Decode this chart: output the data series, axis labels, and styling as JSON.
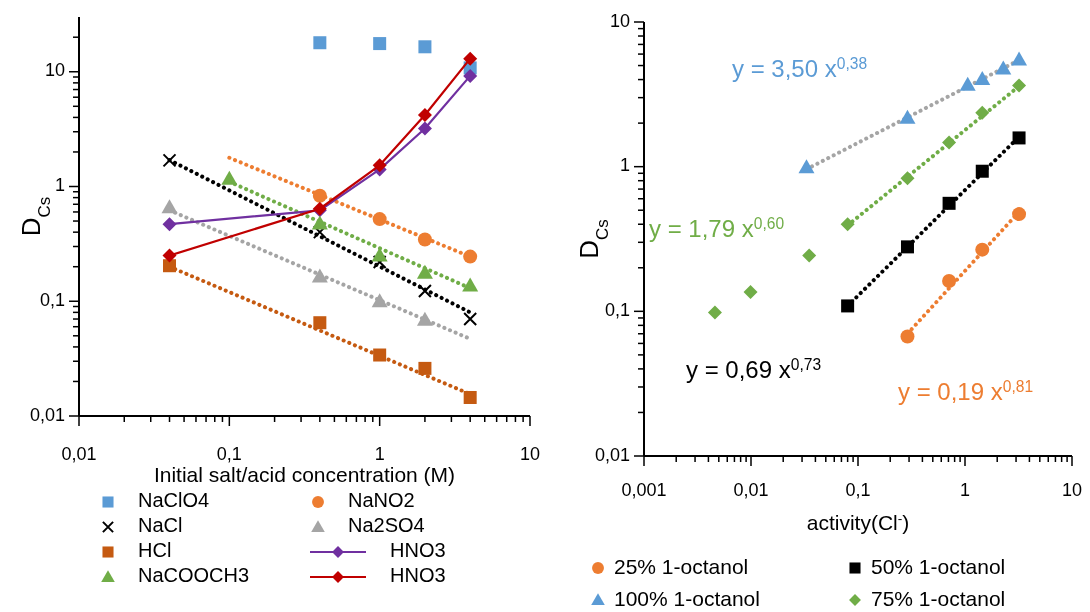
{
  "chart_data": [
    {
      "type": "scatter",
      "xlabel": "Initial salt/acid concentration (M)",
      "ylabel": "D$_{Cs}$",
      "log": "xy",
      "grid": false,
      "legend": "bottom",
      "xlim": [
        0.01,
        10
      ],
      "ylim": [
        0.01,
        30
      ],
      "xticks": [
        {
          "value": 0.01,
          "label": "0,01"
        },
        {
          "value": 0.1,
          "label": "0,1"
        },
        {
          "value": 1,
          "label": "1"
        },
        {
          "value": 10,
          "label": "10"
        },
        {
          "value": 0.02,
          "label": null
        },
        {
          "value": 0.03,
          "label": null
        },
        {
          "value": 0.04,
          "label": null
        },
        {
          "value": 0.05,
          "label": null
        },
        {
          "value": 0.06,
          "label": null
        },
        {
          "value": 0.07,
          "label": null
        },
        {
          "value": 0.08,
          "label": null
        },
        {
          "value": 0.09,
          "label": null
        },
        {
          "value": 0.2,
          "label": null
        },
        {
          "value": 0.3,
          "label": null
        },
        {
          "value": 0.4,
          "label": null
        },
        {
          "value": 0.5,
          "label": null
        },
        {
          "value": 0.6,
          "label": null
        },
        {
          "value": 0.7,
          "label": null
        },
        {
          "value": 0.8,
          "label": null
        },
        {
          "value": 0.9,
          "label": null
        },
        {
          "value": 2,
          "label": null
        },
        {
          "value": 3,
          "label": null
        },
        {
          "value": 4,
          "label": null
        },
        {
          "value": 5,
          "label": null
        },
        {
          "value": 6,
          "label": null
        },
        {
          "value": 7,
          "label": null
        },
        {
          "value": 8,
          "label": null
        },
        {
          "value": 9,
          "label": null
        }
      ],
      "yticks": [
        {
          "value": 0.01,
          "label": "0,01"
        },
        {
          "value": 0.1,
          "label": "0,1"
        },
        {
          "value": 1,
          "label": "1"
        },
        {
          "value": 10,
          "label": "10"
        },
        {
          "value": 0.02,
          "label": null
        },
        {
          "value": 0.03,
          "label": null
        },
        {
          "value": 0.04,
          "label": null
        },
        {
          "value": 0.05,
          "label": null
        },
        {
          "value": 0.06,
          "label": null
        },
        {
          "value": 0.07,
          "label": null
        },
        {
          "value": 0.08,
          "label": null
        },
        {
          "value": 0.09,
          "label": null
        },
        {
          "value": 0.2,
          "label": null
        },
        {
          "value": 0.3,
          "label": null
        },
        {
          "value": 0.4,
          "label": null
        },
        {
          "value": 0.5,
          "label": null
        },
        {
          "value": 0.6,
          "label": null
        },
        {
          "value": 0.7,
          "label": null
        },
        {
          "value": 0.8,
          "label": null
        },
        {
          "value": 0.9,
          "label": null
        },
        {
          "value": 2,
          "label": null
        },
        {
          "value": 3,
          "label": null
        },
        {
          "value": 4,
          "label": null
        },
        {
          "value": 5,
          "label": null
        },
        {
          "value": 6,
          "label": null
        },
        {
          "value": 7,
          "label": null
        },
        {
          "value": 8,
          "label": null
        },
        {
          "value": 9,
          "label": null
        },
        {
          "value": 20,
          "label": null
        }
      ],
      "series": [
        {
          "type": "line",
          "color": "#ed7d31",
          "marker": "none",
          "line_style": "dotted",
          "x": [
            0.1,
            4
          ],
          "values": [
            1.78,
            0.245
          ]
        },
        {
          "type": "line",
          "color": "#000000",
          "marker": "none",
          "line_style": "dotted",
          "x": [
            0.04,
            4
          ],
          "values": [
            1.7,
            0.08
          ]
        },
        {
          "type": "line",
          "color": "#a5a5a5",
          "marker": "none",
          "line_style": "dotted",
          "x": [
            0.04,
            4
          ],
          "values": [
            0.62,
            0.047
          ]
        },
        {
          "type": "line",
          "color": "#c55a11",
          "marker": "none",
          "line_style": "dotted",
          "x": [
            0.04,
            4
          ],
          "values": [
            0.2,
            0.0155
          ]
        },
        {
          "type": "line",
          "color": "#70ad47",
          "marker": "none",
          "line_style": "dotted",
          "x": [
            0.1,
            4
          ],
          "values": [
            1.1,
            0.13
          ]
        },
        {
          "name": "NaClO4",
          "type": "scatter",
          "color": "#5b9bd5",
          "marker": "square",
          "x": [
            0.4,
            1,
            2,
            4
          ],
          "values": [
            17.9,
            17.6,
            16.5,
            10.8
          ]
        },
        {
          "name": "NaNO2",
          "type": "scatter",
          "color": "#ed7d31",
          "marker": "circle",
          "x": [
            0.4,
            1,
            2,
            4
          ],
          "values": [
            0.83,
            0.52,
            0.345,
            0.245
          ]
        },
        {
          "name": "NaCl",
          "type": "scatter",
          "color": "#000000",
          "marker": "cross",
          "x": [
            0.04,
            0.4,
            1,
            2,
            4
          ],
          "values": [
            1.69,
            0.4,
            0.22,
            0.123,
            0.07
          ]
        },
        {
          "name": "Na2SO4",
          "type": "scatter",
          "color": "#a5a5a5",
          "marker": "triangle",
          "x": [
            0.04,
            0.4,
            1,
            2
          ],
          "values": [
            0.66,
            0.164,
            0.1,
            0.069
          ]
        },
        {
          "name": "HCl",
          "type": "scatter",
          "color": "#c55a11",
          "marker": "square",
          "x": [
            0.04,
            0.4,
            1,
            2,
            4
          ],
          "values": [
            0.204,
            0.065,
            0.034,
            0.026,
            0.0145
          ]
        },
        {
          "name": "HNO3",
          "type": "line",
          "color": "#7030a0",
          "marker": "diamond",
          "line_style": "solid",
          "x": [
            0.04,
            0.4,
            1,
            2,
            4
          ],
          "values": [
            0.47,
            0.62,
            1.41,
            3.2,
            9.2
          ]
        },
        {
          "name": "NaCOOCH3",
          "type": "scatter",
          "color": "#70ad47",
          "marker": "triangle",
          "x": [
            0.1,
            0.4,
            1,
            2,
            4
          ],
          "values": [
            1.17,
            0.475,
            0.25,
            0.177,
            0.137
          ]
        },
        {
          "name": "HNO3",
          "type": "line",
          "color": "#c00000",
          "marker": "diamond",
          "line_style": "solid",
          "x": [
            0.04,
            0.4,
            1,
            2,
            4
          ],
          "values": [
            0.25,
            0.64,
            1.53,
            4.2,
            13
          ]
        }
      ]
    },
    {
      "type": "scatter",
      "xlabel": "activity(Cl$^{-}$)",
      "ylabel": "D$_{Cs}$",
      "log": "xy",
      "grid": false,
      "legend": "bottom",
      "xlim": [
        0.001,
        10
      ],
      "ylim": [
        0.01,
        10
      ],
      "xticks": [
        {
          "value": 0.001,
          "label": "0,001"
        },
        {
          "value": 0.01,
          "label": "0,01"
        },
        {
          "value": 0.1,
          "label": "0,1"
        },
        {
          "value": 1,
          "label": "1"
        },
        {
          "value": 10,
          "label": "10"
        },
        {
          "value": 0.002,
          "label": null
        },
        {
          "value": 0.003,
          "label": null
        },
        {
          "value": 0.004,
          "label": null
        },
        {
          "value": 0.005,
          "label": null
        },
        {
          "value": 0.006,
          "label": null
        },
        {
          "value": 0.007,
          "label": null
        },
        {
          "value": 0.008,
          "label": null
        },
        {
          "value": 0.009,
          "label": null
        },
        {
          "value": 0.02,
          "label": null
        },
        {
          "value": 0.03,
          "label": null
        },
        {
          "value": 0.04,
          "label": null
        },
        {
          "value": 0.05,
          "label": null
        },
        {
          "value": 0.06,
          "label": null
        },
        {
          "value": 0.07,
          "label": null
        },
        {
          "value": 0.08,
          "label": null
        },
        {
          "value": 0.09,
          "label": null
        },
        {
          "value": 0.2,
          "label": null
        },
        {
          "value": 0.3,
          "label": null
        },
        {
          "value": 0.4,
          "label": null
        },
        {
          "value": 0.5,
          "label": null
        },
        {
          "value": 0.6,
          "label": null
        },
        {
          "value": 0.7,
          "label": null
        },
        {
          "value": 0.8,
          "label": null
        },
        {
          "value": 0.9,
          "label": null
        },
        {
          "value": 2,
          "label": null
        },
        {
          "value": 3,
          "label": null
        },
        {
          "value": 4,
          "label": null
        },
        {
          "value": 5,
          "label": null
        },
        {
          "value": 6,
          "label": null
        },
        {
          "value": 7,
          "label": null
        },
        {
          "value": 8,
          "label": null
        },
        {
          "value": 9,
          "label": null
        }
      ],
      "yticks": [
        {
          "value": 0.01,
          "label": "0,01"
        },
        {
          "value": 0.1,
          "label": "0,1"
        },
        {
          "value": 1,
          "label": "1"
        },
        {
          "value": 10,
          "label": "10"
        },
        {
          "value": 0.02,
          "label": null
        },
        {
          "value": 0.03,
          "label": null
        },
        {
          "value": 0.04,
          "label": null
        },
        {
          "value": 0.05,
          "label": null
        },
        {
          "value": 0.06,
          "label": null
        },
        {
          "value": 0.07,
          "label": null
        },
        {
          "value": 0.08,
          "label": null
        },
        {
          "value": 0.09,
          "label": null
        },
        {
          "value": 0.2,
          "label": null
        },
        {
          "value": 0.3,
          "label": null
        },
        {
          "value": 0.4,
          "label": null
        },
        {
          "value": 0.5,
          "label": null
        },
        {
          "value": 0.6,
          "label": null
        },
        {
          "value": 0.7,
          "label": null
        },
        {
          "value": 0.8,
          "label": null
        },
        {
          "value": 0.9,
          "label": null
        },
        {
          "value": 2,
          "label": null
        },
        {
          "value": 3,
          "label": null
        },
        {
          "value": 4,
          "label": null
        },
        {
          "value": 5,
          "label": null
        },
        {
          "value": 6,
          "label": null
        },
        {
          "value": 7,
          "label": null
        },
        {
          "value": 8,
          "label": null
        },
        {
          "value": 9,
          "label": null
        }
      ],
      "annotations": [
        "y = 0,19 x$^{0,81}$",
        "y = 0,69 x$^{0,73}$",
        "y = 3,50 x$^{0,38}$",
        "y = 1,79 x$^{0,60}$"
      ],
      "series": [
        {
          "type": "line",
          "color": "#a5a5a5",
          "marker": "none",
          "line_style": "dotted",
          "x": [
            0.033,
            3.2
          ],
          "values": [
            0.96,
            5.45
          ]
        },
        {
          "type": "line",
          "color": "#70ad47",
          "marker": "none",
          "line_style": "dotted",
          "x": [
            0.08,
            3.2
          ],
          "values": [
            0.393,
            3.6
          ]
        },
        {
          "type": "line",
          "color": "#000000",
          "marker": "none",
          "line_style": "dotted",
          "x": [
            0.08,
            3.2
          ],
          "values": [
            0.109,
            1.61
          ]
        },
        {
          "type": "line",
          "color": "#ed7d31",
          "marker": "none",
          "line_style": "dotted",
          "x": [
            0.29,
            3.2
          ],
          "values": [
            0.07,
            0.487
          ]
        },
        {
          "name": "25% 1-octanol",
          "type": "scatter",
          "color": "#ed7d31",
          "marker": "circle",
          "x": [
            0.29,
            0.71,
            1.45,
            3.2
          ],
          "values": [
            0.067,
            0.162,
            0.267,
            0.47
          ]
        },
        {
          "name": "50% 1-octanol",
          "type": "scatter",
          "color": "#000000",
          "marker": "square",
          "x": [
            0.08,
            0.29,
            0.71,
            1.45,
            3.2
          ],
          "values": [
            0.109,
            0.279,
            0.558,
            0.93,
            1.58
          ]
        },
        {
          "name": "100% 1-octanol",
          "type": "scatter",
          "color": "#5b9bd5",
          "marker": "triangle",
          "x": [
            0.033,
            0.29,
            1.06,
            1.45,
            2.28,
            3.2
          ],
          "values": [
            0.99,
            2.18,
            3.68,
            4.04,
            4.78,
            5.5
          ]
        },
        {
          "name": "75% 1-octanol",
          "type": "scatter",
          "color": "#70ad47",
          "marker": "diamond",
          "x": [
            0.0046,
            0.0099,
            0.035,
            0.08,
            0.29,
            0.71,
            1.45,
            3.2
          ],
          "values": [
            0.098,
            0.136,
            0.243,
            0.4,
            0.83,
            1.47,
            2.36,
            3.64
          ]
        }
      ]
    }
  ]
}
